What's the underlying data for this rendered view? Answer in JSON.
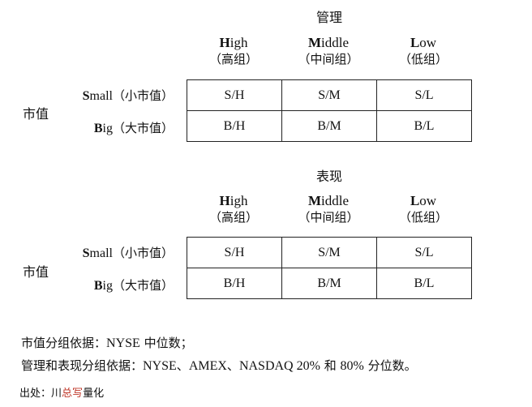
{
  "sections": [
    {
      "title": "管理",
      "columns": [
        {
          "first": "H",
          "rest": "igh",
          "cn": "（高组）"
        },
        {
          "first": "M",
          "rest": "iddle",
          "cn": "（中间组）"
        },
        {
          "first": "L",
          "rest": "ow",
          "cn": "（低组）"
        }
      ],
      "side_label": "市值",
      "rows": [
        {
          "first": "S",
          "rest": "mall",
          "cn": "（小市值）",
          "cells": [
            "S/H",
            "S/M",
            "S/L"
          ]
        },
        {
          "first": "B",
          "rest": "ig",
          "cn": "（大市值）",
          "cells": [
            "B/H",
            "B/M",
            "B/L"
          ]
        }
      ]
    },
    {
      "title": "表现",
      "columns": [
        {
          "first": "H",
          "rest": "igh",
          "cn": "（高组）"
        },
        {
          "first": "M",
          "rest": "iddle",
          "cn": "（中间组）"
        },
        {
          "first": "L",
          "rest": "ow",
          "cn": "（低组）"
        }
      ],
      "side_label": "市值",
      "rows": [
        {
          "first": "S",
          "rest": "mall",
          "cn": "（小市值）",
          "cells": [
            "S/H",
            "S/M",
            "S/L"
          ]
        },
        {
          "first": "B",
          "rest": "ig",
          "cn": "（大市值）",
          "cells": [
            "B/H",
            "B/M",
            "B/L"
          ]
        }
      ]
    }
  ],
  "notes": {
    "line1_prefix": "市值分组依据：",
    "line1_lat": "NYSE",
    "line1_suffix": " 中位数；",
    "line2_prefix": "管理和表现分组依据：",
    "line2_lat1": "NYSE",
    "line2_sep1": "、",
    "line2_lat2": "AMEX",
    "line2_sep2": "、",
    "line2_lat3": "NASDAQ 20%",
    "line2_mid": " 和 ",
    "line2_lat4": "80%",
    "line2_suffix": " 分位数。"
  },
  "source": {
    "prefix": "出处：",
    "name_a": "川",
    "name_b": "总",
    "name_c": "写",
    "name_d": "量化"
  }
}
